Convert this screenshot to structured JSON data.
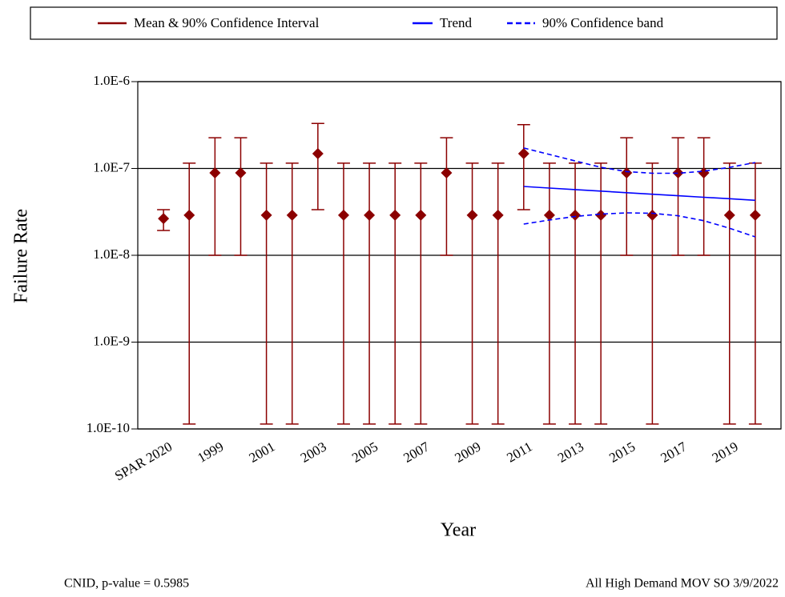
{
  "chart_data": {
    "type": "errorbar",
    "legend": [
      "Mean & 90% Confidence Interval",
      "Trend",
      "90% Confidence band"
    ],
    "legend_position": "top",
    "x_label": "Year",
    "y_label": "Failure Rate",
    "log_y": true,
    "grid": true,
    "categories": [
      "SPAR 2020",
      null,
      "1999",
      null,
      "2001",
      null,
      "2003",
      null,
      "2005",
      null,
      "2007",
      null,
      "2009",
      null,
      "2011",
      null,
      "2013",
      null,
      "2015",
      null,
      "2017",
      null,
      "2019",
      null
    ],
    "ylim": [
      1e-10,
      1e-06
    ],
    "yticks": [
      {
        "value": 1e-10,
        "label": "1.0E-10"
      },
      {
        "value": 1e-09,
        "label": "1.0E-9"
      },
      {
        "value": 1e-08,
        "label": "1.0E-8"
      },
      {
        "value": 1e-07,
        "label": "1.0E-7"
      },
      {
        "value": 1e-06,
        "label": "1.0E-6"
      }
    ],
    "series": [
      {
        "name": "Mean & 90% Confidence Interval",
        "color": "#8b0000",
        "style": "errorbar",
        "values": [
          2.65e-08,
          2.9e-08,
          8.9e-08,
          8.9e-08,
          2.9e-08,
          2.9e-08,
          1.48e-07,
          2.9e-08,
          2.9e-08,
          2.9e-08,
          2.9e-08,
          8.9e-08,
          2.9e-08,
          2.9e-08,
          1.48e-07,
          2.9e-08,
          2.9e-08,
          2.9e-08,
          8.9e-08,
          2.9e-08,
          8.9e-08,
          8.9e-08,
          2.9e-08,
          2.9e-08
        ],
        "lower": [
          1.93e-08,
          1.14e-10,
          1e-08,
          1e-08,
          1.14e-10,
          1.14e-10,
          3.35e-08,
          1.14e-10,
          1.14e-10,
          1.14e-10,
          1.14e-10,
          1e-08,
          1.14e-10,
          1.14e-10,
          3.35e-08,
          1.14e-10,
          1.14e-10,
          1.14e-10,
          1e-08,
          1.14e-10,
          1e-08,
          1e-08,
          1.14e-10,
          1.14e-10
        ],
        "upper": [
          3.35e-08,
          1.15e-07,
          2.26e-07,
          2.26e-07,
          1.15e-07,
          1.15e-07,
          3.3e-07,
          1.15e-07,
          1.15e-07,
          1.15e-07,
          1.15e-07,
          2.26e-07,
          1.15e-07,
          1.15e-07,
          3.2e-07,
          1.15e-07,
          1.15e-07,
          1.15e-07,
          2.26e-07,
          1.15e-07,
          2.26e-07,
          2.26e-07,
          1.15e-07,
          1.15e-07
        ]
      },
      {
        "name": "Trend",
        "color": "#0000ff",
        "style": "line",
        "values": [
          null,
          null,
          null,
          null,
          null,
          null,
          null,
          null,
          null,
          null,
          null,
          null,
          null,
          null,
          6.2e-08,
          5.95e-08,
          5.71e-08,
          5.48e-08,
          5.26e-08,
          5.05e-08,
          4.85e-08,
          4.66e-08,
          4.48e-08,
          4.3e-08
        ]
      },
      {
        "name": "90% Confidence band",
        "color": "#0000ff",
        "style": "band",
        "upper": [
          null,
          null,
          null,
          null,
          null,
          null,
          null,
          null,
          null,
          null,
          null,
          null,
          null,
          null,
          1.72e-07,
          1.45e-07,
          1.22e-07,
          1.03e-07,
          9.2e-08,
          8.8e-08,
          8.8e-08,
          9.3e-08,
          1.03e-07,
          1.17e-07
        ],
        "lower": [
          null,
          null,
          null,
          null,
          null,
          null,
          null,
          null,
          null,
          null,
          null,
          null,
          null,
          null,
          2.29e-08,
          2.55e-08,
          2.8e-08,
          2.98e-08,
          3.08e-08,
          3.05e-08,
          2.85e-08,
          2.5e-08,
          2.05e-08,
          1.63e-08
        ]
      }
    ],
    "footnote_left": "CNID, p-value = 0.5985",
    "footnote_right": "All High Demand MOV SO 3/9/2022"
  }
}
